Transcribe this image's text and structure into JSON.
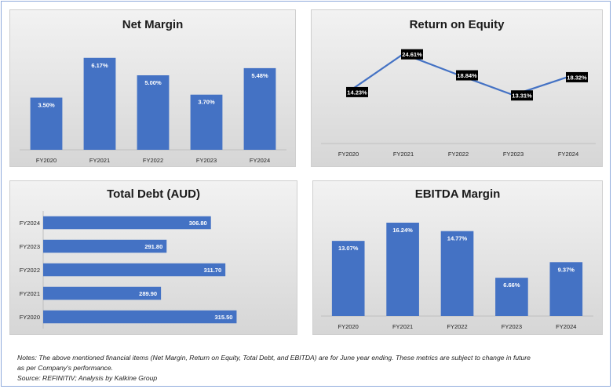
{
  "chart_data": [
    {
      "id": "net-margin",
      "type": "bar",
      "title": "Net Margin",
      "categories": [
        "FY2020",
        "FY2021",
        "FY2022",
        "FY2023",
        "FY2024"
      ],
      "values": [
        3.5,
        6.17,
        5.0,
        3.7,
        5.48
      ],
      "labels": [
        "3.50%",
        "6.17%",
        "5.00%",
        "3.70%",
        "5.48%"
      ],
      "xlabel": "",
      "ylabel": "",
      "ylim": [
        0,
        7
      ],
      "grid": false,
      "color": "#4472c4"
    },
    {
      "id": "roe",
      "type": "line",
      "title": "Return on Equity",
      "categories": [
        "FY2020",
        "FY2021",
        "FY2022",
        "FY2023",
        "FY2024"
      ],
      "values": [
        14.23,
        24.61,
        18.84,
        13.31,
        18.32
      ],
      "labels": [
        "14.23%",
        "24.61%",
        "18.84%",
        "13.31%",
        "18.32%"
      ],
      "xlabel": "",
      "ylabel": "",
      "ylim": [
        0,
        28
      ],
      "grid": false,
      "color": "#4472c4"
    },
    {
      "id": "total-debt",
      "type": "bar",
      "orientation": "horizontal",
      "title": "Total Debt (AUD)",
      "categories": [
        "FY2024",
        "FY2023",
        "FY2022",
        "FY2021",
        "FY2020"
      ],
      "values": [
        306.8,
        291.8,
        311.7,
        289.9,
        315.5
      ],
      "labels": [
        "306.80",
        "291.80",
        "311.70",
        "289.90",
        "315.50"
      ],
      "xlabel": "",
      "ylabel": "",
      "xlim": [
        250,
        330
      ],
      "grid": false,
      "color": "#4472c4"
    },
    {
      "id": "ebitda-margin",
      "type": "bar",
      "title": "EBITDA Margin",
      "categories": [
        "FY2020",
        "FY2021",
        "FY2022",
        "FY2023",
        "FY2024"
      ],
      "values": [
        13.07,
        16.24,
        14.77,
        6.66,
        9.37
      ],
      "labels": [
        "13.07%",
        "16.24%",
        "14.77%",
        "6.66%",
        "9.37%"
      ],
      "xlabel": "",
      "ylabel": "",
      "ylim": [
        0,
        18
      ],
      "grid": false,
      "color": "#4472c4"
    }
  ],
  "notes": {
    "line1": "Notes: The above mentioned financial items (Net Margin, Return on Equity, Total Debt, and EBITDA) are for June year ending. These metrics are subject to change in future",
    "line2": "as per Company's performance.",
    "source": "Source: REFINITIV; Analysis by Kalkine Group"
  }
}
